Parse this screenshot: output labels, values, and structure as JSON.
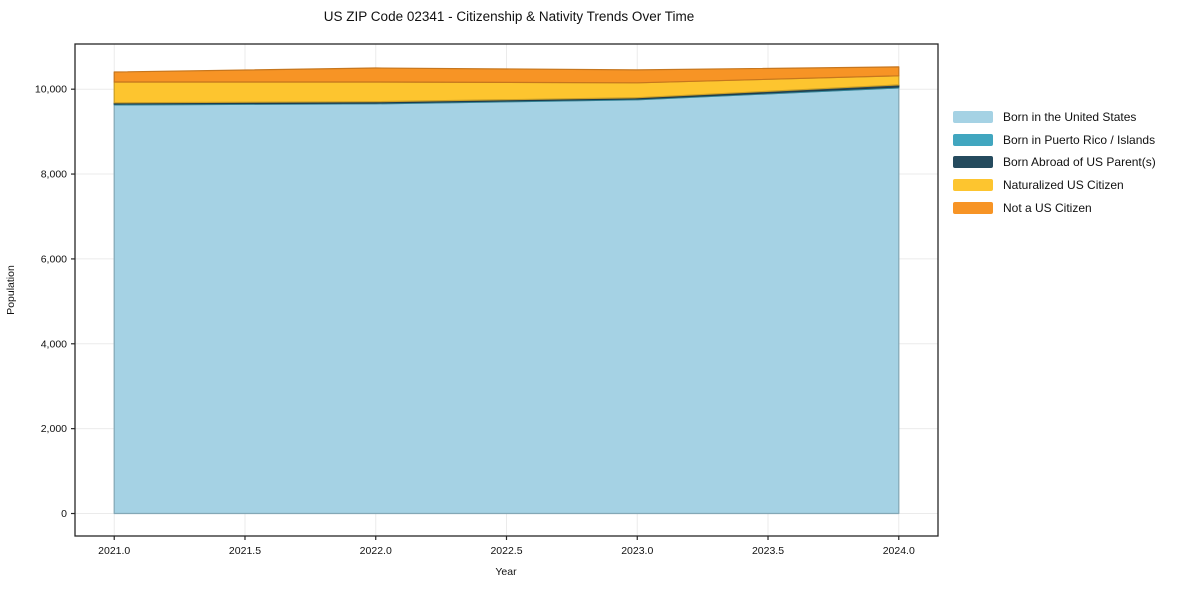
{
  "chart_data": {
    "type": "area",
    "stacked": true,
    "title": "US ZIP Code 02341 - Citizenship & Nativity Trends Over Time",
    "xlabel": "Year",
    "ylabel": "Population",
    "x": [
      2021,
      2022,
      2023,
      2024
    ],
    "series": [
      {
        "name": "Born in the United States",
        "color": "#a5d2e4",
        "values": [
          9630,
          9655,
          9750,
          10030
        ]
      },
      {
        "name": "Born in Puerto Rico / Islands",
        "color": "#41a6bf",
        "values": [
          20,
          20,
          20,
          25
        ]
      },
      {
        "name": "Born Abroad of US Parent(s)",
        "color": "#254b5e",
        "values": [
          30,
          30,
          30,
          45
        ]
      },
      {
        "name": "Naturalized US Citizen",
        "color": "#fdc52f",
        "values": [
          490,
          465,
          350,
          215
        ]
      },
      {
        "name": "Not a US Citizen",
        "color": "#f79425",
        "values": [
          235,
          330,
          305,
          210
        ]
      }
    ],
    "totals": [
      10405,
      10500,
      10455,
      10525
    ],
    "xlim": [
      2020.85,
      2024.15
    ],
    "ylim": [
      -530,
      11065
    ],
    "xticks": {
      "values": [
        2021.0,
        2021.5,
        2022.0,
        2022.5,
        2023.0,
        2023.5,
        2024.0
      ],
      "labels": [
        "2021.0",
        "2021.5",
        "2022.0",
        "2022.5",
        "2023.0",
        "2023.5",
        "2024.0"
      ]
    },
    "yticks": {
      "values": [
        0,
        2000,
        4000,
        6000,
        8000,
        10000
      ],
      "labels": [
        "0",
        "2,000",
        "4,000",
        "6,000",
        "8,000",
        "10,000"
      ]
    },
    "grid": true,
    "legend_position": "right-outside",
    "colors": {
      "background": "#ffffff",
      "grid": "#ebebeb",
      "axis": "#262626",
      "text": "#111111"
    }
  }
}
